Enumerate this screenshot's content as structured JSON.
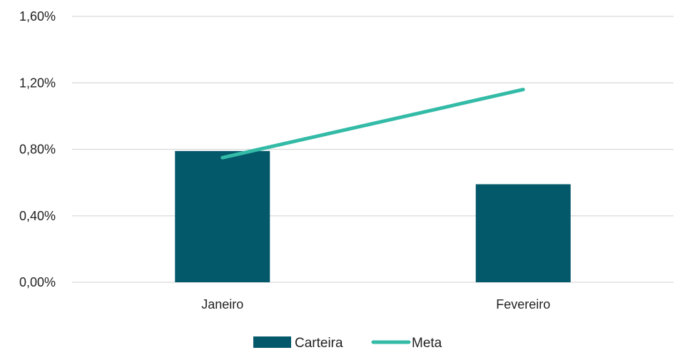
{
  "chart_data": {
    "type": "bar",
    "categories": [
      "Janeiro",
      "Fevereiro"
    ],
    "series": [
      {
        "name": "Carteira",
        "type": "bar",
        "values": [
          0.79,
          0.59
        ],
        "color": "#03586A"
      },
      {
        "name": "Meta",
        "type": "line",
        "values": [
          0.75,
          1.16
        ],
        "color": "#33BBA7"
      }
    ],
    "ylim": [
      0,
      1.6
    ],
    "yticks": [
      0,
      0.4,
      0.8,
      1.2,
      1.6
    ],
    "ytick_labels": [
      "0,00%",
      "0,40%",
      "0,80%",
      "1,20%",
      "1,60%"
    ],
    "grid": true,
    "legend": "bottom",
    "title": "",
    "xlabel": "",
    "ylabel": ""
  }
}
